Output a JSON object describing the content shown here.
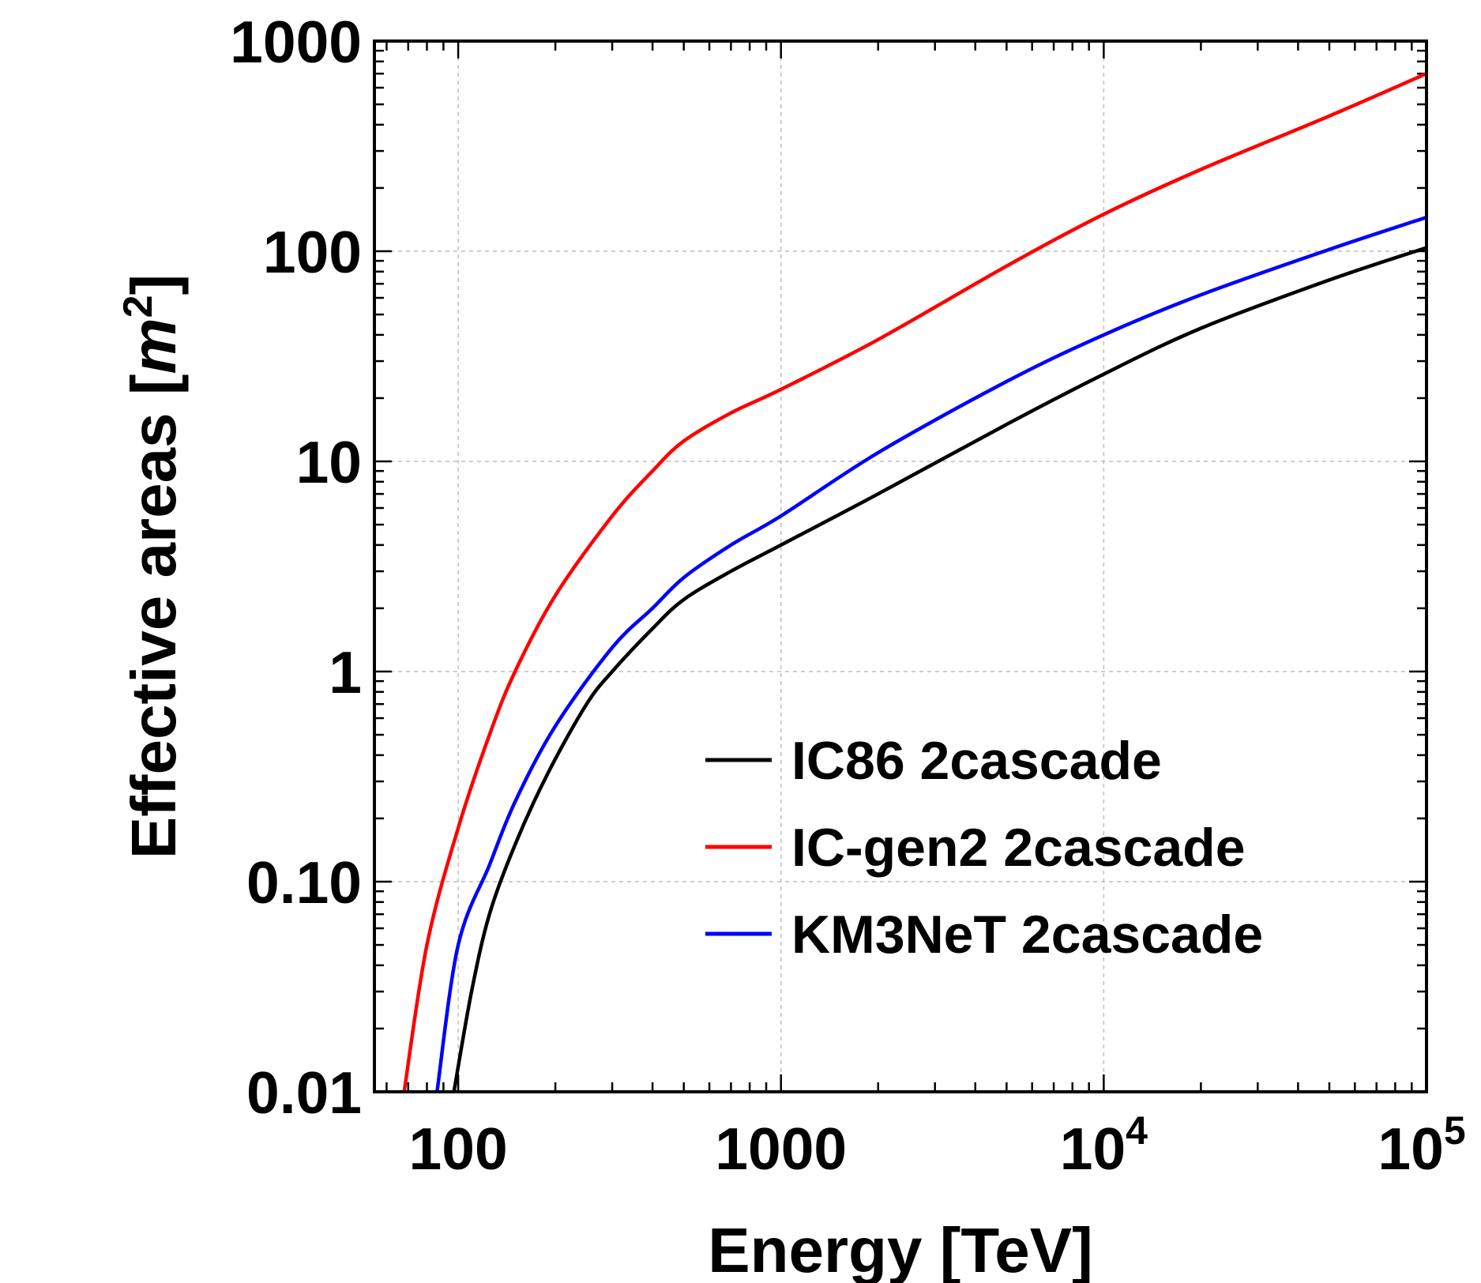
{
  "chart_data": {
    "type": "line",
    "title": "",
    "xlabel": "Energy [TeV]",
    "ylabel_prefix": "Effective areas [",
    "ylabel_unit": "m",
    "ylabel_exp": "2",
    "ylabel_suffix": "]",
    "xscale": "log",
    "yscale": "log",
    "xlim": [
      55,
      100000
    ],
    "ylim": [
      0.01,
      1000
    ],
    "grid": true,
    "legend_position": "lower-right",
    "x_ticks": [
      {
        "value": 100,
        "base": "100",
        "exp": ""
      },
      {
        "value": 1000,
        "base": "1000",
        "exp": ""
      },
      {
        "value": 10000,
        "base": "10",
        "exp": "4"
      },
      {
        "value": 100000,
        "base": "10",
        "exp": "5"
      }
    ],
    "y_ticks": [
      {
        "value": 0.01,
        "label": "0.01"
      },
      {
        "value": 0.1,
        "label": "0.10"
      },
      {
        "value": 1,
        "label": "1"
      },
      {
        "value": 10,
        "label": "10"
      },
      {
        "value": 100,
        "label": "100"
      },
      {
        "value": 1000,
        "label": "1000"
      }
    ],
    "series": [
      {
        "name": "IC86 2cascade",
        "color": "#000000",
        "points": [
          [
            97,
            0.01
          ],
          [
            110,
            0.03
          ],
          [
            125,
            0.07
          ],
          [
            150,
            0.15
          ],
          [
            190,
            0.33
          ],
          [
            250,
            0.7
          ],
          [
            300,
            1.0
          ],
          [
            400,
            1.6
          ],
          [
            500,
            2.2
          ],
          [
            700,
            3.0
          ],
          [
            1000,
            4.0
          ],
          [
            2000,
            7.0
          ],
          [
            5000,
            15
          ],
          [
            10000,
            26
          ],
          [
            20000,
            43
          ],
          [
            50000,
            73
          ],
          [
            100000,
            104
          ]
        ]
      },
      {
        "name": "IC-gen2 2cascade",
        "color": "#ff0000",
        "points": [
          [
            68,
            0.01
          ],
          [
            80,
            0.05
          ],
          [
            100,
            0.18
          ],
          [
            125,
            0.5
          ],
          [
            150,
            1.0
          ],
          [
            200,
            2.3
          ],
          [
            300,
            5.5
          ],
          [
            400,
            9.0
          ],
          [
            500,
            12.5
          ],
          [
            700,
            17
          ],
          [
            1000,
            22
          ],
          [
            2000,
            38
          ],
          [
            5000,
            85
          ],
          [
            10000,
            150
          ],
          [
            20000,
            245
          ],
          [
            50000,
            440
          ],
          [
            100000,
            700
          ]
        ]
      },
      {
        "name": "KM3NeT 2cascade",
        "color": "#0000ff",
        "points": [
          [
            86,
            0.01
          ],
          [
            100,
            0.05
          ],
          [
            125,
            0.12
          ],
          [
            150,
            0.24
          ],
          [
            200,
            0.55
          ],
          [
            300,
            1.3
          ],
          [
            400,
            2.0
          ],
          [
            500,
            2.8
          ],
          [
            700,
            4.0
          ],
          [
            1000,
            5.5
          ],
          [
            2000,
            11
          ],
          [
            5000,
            24
          ],
          [
            10000,
            40
          ],
          [
            20000,
            62
          ],
          [
            50000,
            102
          ],
          [
            100000,
            145
          ]
        ]
      }
    ]
  }
}
